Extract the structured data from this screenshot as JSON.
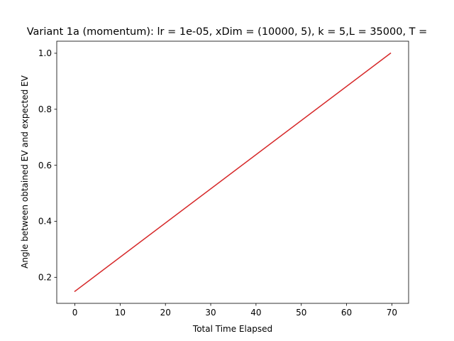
{
  "chart_data": {
    "type": "line",
    "title": "Variant 1a (momentum): lr = 1e-05, xDim = (10000, 5), k = 5,L = 35000, T =",
    "xlabel": "Total Time Elapsed",
    "ylabel": "Angle between obtained EV and expected EV",
    "xlim": [
      -4.0,
      73.7
    ],
    "ylim": [
      0.107,
      1.043
    ],
    "xticks": [
      0,
      10,
      20,
      30,
      40,
      50,
      60,
      70
    ],
    "yticks": [
      0.2,
      0.4,
      0.6,
      0.8,
      1.0
    ],
    "xtick_labels": [
      "0",
      "10",
      "20",
      "30",
      "40",
      "50",
      "60",
      "70"
    ],
    "ytick_labels": [
      "0.2",
      "0.4",
      "0.6",
      "0.8",
      "1.0"
    ],
    "grid": false,
    "series": [
      {
        "color": "#d62728",
        "x": [
          0,
          69.7
        ],
        "y": [
          0.15,
          1.0
        ]
      }
    ]
  }
}
